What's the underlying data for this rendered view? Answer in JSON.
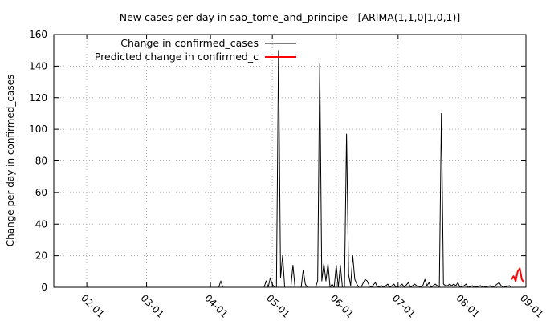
{
  "chart_data": {
    "type": "line",
    "title": "New cases per day in sao_tome_and_principe -  [ARIMA(1,1,0|1,0,1)]",
    "xlabel": "",
    "ylabel": "Change per day in confirmed_cases",
    "ylim": [
      0,
      160
    ],
    "yticks": [
      0,
      20,
      40,
      60,
      80,
      100,
      120,
      140,
      160
    ],
    "xlim": [
      "2020-01-16",
      "2020-09-01"
    ],
    "xticks": [
      {
        "date": "2020-02-01",
        "label": "02-01"
      },
      {
        "date": "2020-03-01",
        "label": "03-01"
      },
      {
        "date": "2020-04-01",
        "label": "04-01"
      },
      {
        "date": "2020-05-01",
        "label": "05-01"
      },
      {
        "date": "2020-06-01",
        "label": "06-01"
      },
      {
        "date": "2020-07-01",
        "label": "07-01"
      },
      {
        "date": "2020-08-01",
        "label": "08-01"
      },
      {
        "date": "2020-09-01",
        "label": "09-01"
      }
    ],
    "grid": true,
    "legend_position": "top-left",
    "series": [
      {
        "name": "Change in confirmed_cases",
        "color": "#000000",
        "points": [
          [
            "2020-01-22",
            0
          ],
          [
            "2020-04-05",
            0
          ],
          [
            "2020-04-06",
            4
          ],
          [
            "2020-04-07",
            0
          ],
          [
            "2020-04-27",
            0
          ],
          [
            "2020-04-28",
            4
          ],
          [
            "2020-04-29",
            0
          ],
          [
            "2020-04-30",
            6
          ],
          [
            "2020-05-01",
            2
          ],
          [
            "2020-05-02",
            0
          ],
          [
            "2020-05-03",
            0
          ],
          [
            "2020-05-04",
            150
          ],
          [
            "2020-05-05",
            6
          ],
          [
            "2020-05-06",
            20
          ],
          [
            "2020-05-07",
            0
          ],
          [
            "2020-05-10",
            0
          ],
          [
            "2020-05-11",
            14
          ],
          [
            "2020-05-12",
            0
          ],
          [
            "2020-05-13",
            0
          ],
          [
            "2020-05-15",
            0
          ],
          [
            "2020-05-16",
            11
          ],
          [
            "2020-05-17",
            2
          ],
          [
            "2020-05-18",
            0
          ],
          [
            "2020-05-22",
            0
          ],
          [
            "2020-05-23",
            4
          ],
          [
            "2020-05-24",
            142
          ],
          [
            "2020-05-25",
            4
          ],
          [
            "2020-05-26",
            15
          ],
          [
            "2020-05-27",
            4
          ],
          [
            "2020-05-28",
            15
          ],
          [
            "2020-05-29",
            0
          ],
          [
            "2020-05-30",
            2
          ],
          [
            "2020-05-31",
            0
          ],
          [
            "2020-06-01",
            14
          ],
          [
            "2020-06-02",
            0
          ],
          [
            "2020-06-03",
            14
          ],
          [
            "2020-06-04",
            0
          ],
          [
            "2020-06-05",
            0
          ],
          [
            "2020-06-06",
            97
          ],
          [
            "2020-06-07",
            8
          ],
          [
            "2020-06-08",
            1
          ],
          [
            "2020-06-09",
            20
          ],
          [
            "2020-06-10",
            5
          ],
          [
            "2020-06-11",
            2
          ],
          [
            "2020-06-12",
            0
          ],
          [
            "2020-06-13",
            0
          ],
          [
            "2020-06-15",
            5
          ],
          [
            "2020-06-16",
            4
          ],
          [
            "2020-06-17",
            1
          ],
          [
            "2020-06-18",
            0
          ],
          [
            "2020-06-20",
            3
          ],
          [
            "2020-06-21",
            0
          ],
          [
            "2020-06-23",
            1
          ],
          [
            "2020-06-24",
            0
          ],
          [
            "2020-06-26",
            2
          ],
          [
            "2020-06-27",
            0
          ],
          [
            "2020-06-29",
            2
          ],
          [
            "2020-06-30",
            0
          ],
          [
            "2020-07-02",
            1
          ],
          [
            "2020-07-03",
            2
          ],
          [
            "2020-07-04",
            0
          ],
          [
            "2020-07-06",
            3
          ],
          [
            "2020-07-07",
            0
          ],
          [
            "2020-07-09",
            2
          ],
          [
            "2020-07-10",
            1
          ],
          [
            "2020-07-11",
            0
          ],
          [
            "2020-07-13",
            1
          ],
          [
            "2020-07-14",
            5
          ],
          [
            "2020-07-15",
            1
          ],
          [
            "2020-07-16",
            3
          ],
          [
            "2020-07-17",
            0
          ],
          [
            "2020-07-19",
            2
          ],
          [
            "2020-07-20",
            1
          ],
          [
            "2020-07-21",
            0
          ],
          [
            "2020-07-22",
            110
          ],
          [
            "2020-07-23",
            2
          ],
          [
            "2020-07-24",
            1
          ],
          [
            "2020-07-25",
            1
          ],
          [
            "2020-07-26",
            2
          ],
          [
            "2020-07-27",
            1
          ],
          [
            "2020-07-28",
            2
          ],
          [
            "2020-07-29",
            1
          ],
          [
            "2020-07-30",
            3
          ],
          [
            "2020-07-31",
            0
          ],
          [
            "2020-08-02",
            1
          ],
          [
            "2020-08-03",
            2
          ],
          [
            "2020-08-04",
            0
          ],
          [
            "2020-08-06",
            1
          ],
          [
            "2020-08-07",
            0
          ],
          [
            "2020-08-10",
            1
          ],
          [
            "2020-08-11",
            0
          ],
          [
            "2020-08-15",
            1
          ],
          [
            "2020-08-16",
            0
          ],
          [
            "2020-08-19",
            3
          ],
          [
            "2020-08-20",
            1
          ],
          [
            "2020-08-21",
            0
          ],
          [
            "2020-08-24",
            1
          ],
          [
            "2020-08-25",
            0
          ]
        ]
      },
      {
        "name": "Predicted change in confirmed_c",
        "color": "#ff0000",
        "points": [
          [
            "2020-08-25",
            5
          ],
          [
            "2020-08-26",
            7
          ],
          [
            "2020-08-27",
            4
          ],
          [
            "2020-08-28",
            10
          ],
          [
            "2020-08-29",
            12
          ],
          [
            "2020-08-30",
            5
          ],
          [
            "2020-08-31",
            3
          ]
        ]
      }
    ]
  }
}
